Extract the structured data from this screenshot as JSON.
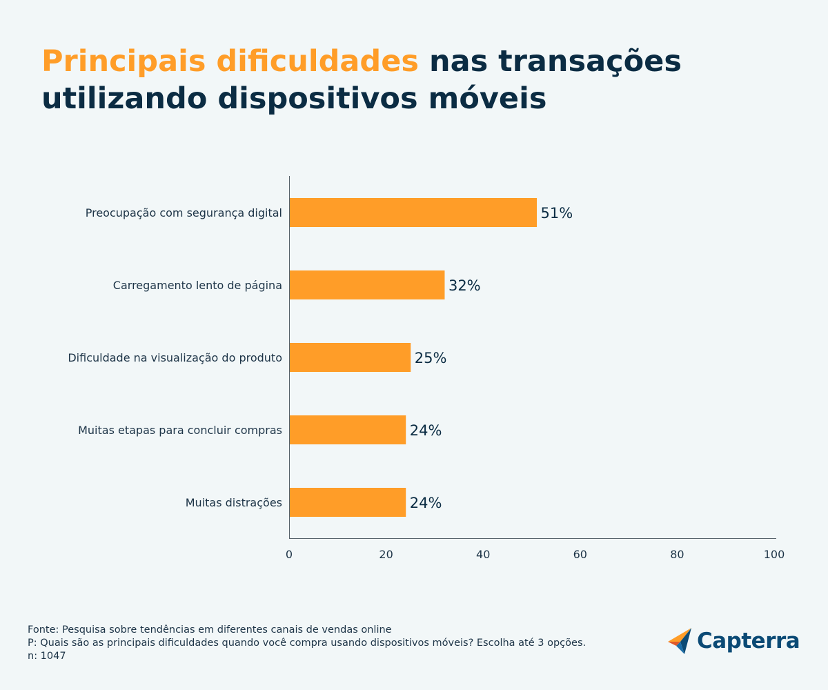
{
  "title": {
    "highlight": "Principais dificuldades",
    "rest_line1": " nas transações",
    "line2": "utilizando dispositivos móveis"
  },
  "chart_data": {
    "type": "bar",
    "orientation": "horizontal",
    "categories": [
      "Preocupação com segurança digital",
      "Carregamento lento de página",
      "Dificuldade na visualização do produto",
      "Muitas etapas para concluir compras",
      "Muitas distrações"
    ],
    "values": [
      51,
      32,
      25,
      24,
      24
    ],
    "value_labels": [
      "51%",
      "32%",
      "25%",
      "24%",
      "24%"
    ],
    "xlim": [
      0,
      100
    ],
    "xticks": [
      "0",
      "20",
      "40",
      "60",
      "80",
      "100"
    ],
    "grid": false,
    "bar_color": "#ff9d28"
  },
  "footer": {
    "source": "Fonte: Pesquisa sobre tendências em diferentes canais de vendas online",
    "question": "P: Quais são as principais dificuldades quando você compra usando dispositivos móveis? Escolha até 3 opções.",
    "n": "n: 1047"
  },
  "logo": {
    "text": "Capterra",
    "icon": "capterra-arrow-icon"
  },
  "colors": {
    "title_dark": "#0b2c43",
    "title_accent": "#ff9d28",
    "background": "#f2f7f8"
  }
}
